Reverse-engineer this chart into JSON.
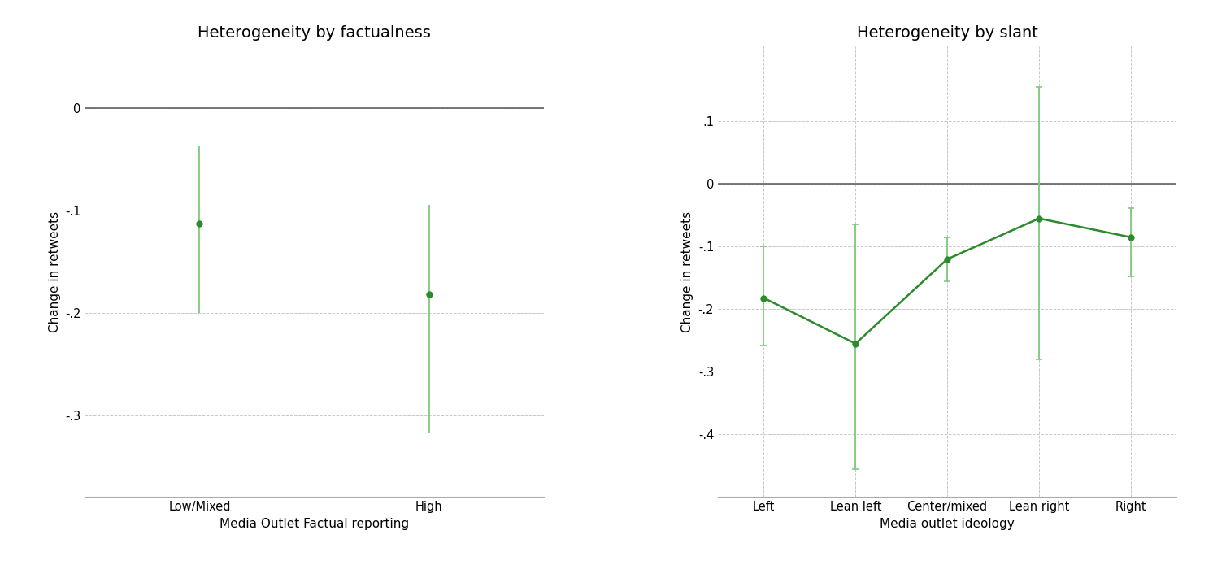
{
  "left_chart": {
    "title": "Heterogeneity by factualness",
    "xlabel": "Media Outlet Factual reporting",
    "ylabel": "Change in retweets",
    "categories": [
      "Low/Mixed",
      "High"
    ],
    "x_positions": [
      1,
      2
    ],
    "points": [
      -0.113,
      -0.182
    ],
    "ci_upper": [
      -0.038,
      -0.095
    ],
    "ci_lower": [
      -0.2,
      -0.318
    ],
    "ylim": [
      -0.38,
      0.06
    ],
    "yticks": [
      0,
      -0.1,
      -0.2,
      -0.3
    ],
    "ytick_labels": [
      "0",
      "-.1",
      "-.2",
      "-.3"
    ],
    "xlim": [
      0.5,
      2.5
    ]
  },
  "right_chart": {
    "title": "Heterogeneity by slant",
    "xlabel": "Media outlet ideology",
    "ylabel": "Change in retweets",
    "categories": [
      "Left",
      "Lean left",
      "Center/mixed",
      "Lean right",
      "Right"
    ],
    "x_positions": [
      1,
      2,
      3,
      4,
      5
    ],
    "points": [
      -0.182,
      -0.255,
      -0.12,
      -0.055,
      -0.085
    ],
    "ci_upper": [
      -0.1,
      -0.065,
      -0.085,
      0.155,
      -0.038
    ],
    "ci_lower": [
      -0.258,
      -0.455,
      -0.155,
      -0.28,
      -0.148
    ],
    "ylim": [
      -0.5,
      0.22
    ],
    "yticks": [
      0.1,
      0,
      -0.1,
      -0.2,
      -0.3,
      -0.4
    ],
    "ytick_labels": [
      ".1",
      "0",
      "-.1",
      "-.2",
      "-.3",
      "-.4"
    ],
    "xlim": [
      0.5,
      5.5
    ]
  },
  "point_color": "#2d8a2d",
  "line_color": "#2d8a2d",
  "ci_color": "#7dc97d",
  "zero_line_color": "#555555",
  "grid_color": "#c8c8c8",
  "bg_color": "#ffffff",
  "title_fontsize": 14,
  "label_fontsize": 11,
  "tick_fontsize": 10.5,
  "point_size": 6,
  "line_width": 1.8,
  "capsize": 3,
  "cap_thick": 1.2,
  "elinewidth": 1.3
}
